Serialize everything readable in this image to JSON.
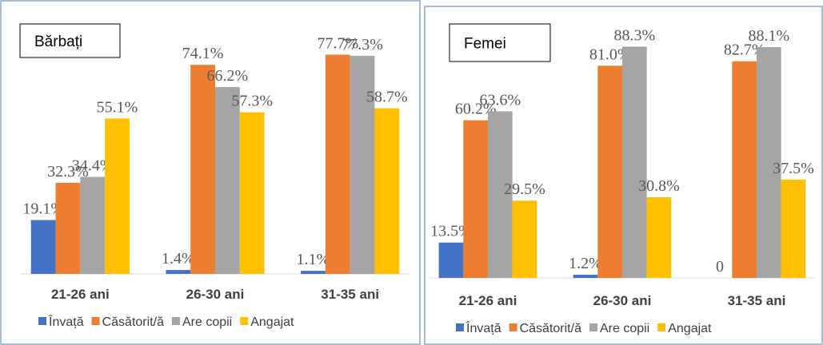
{
  "chart_data": [
    {
      "type": "bar",
      "title": "Bărbați",
      "categories": [
        "21-26 ani",
        "26-30 ani",
        "31-35 ani"
      ],
      "series": [
        {
          "name": "Învață",
          "color": "#4472c4",
          "values": [
            19.1,
            1.4,
            1.1
          ],
          "value_labels": [
            "19.1%",
            "1.4%",
            "1.1%"
          ]
        },
        {
          "name": "Căsătorit/ă",
          "color": "#ed7d31",
          "values": [
            32.3,
            74.1,
            77.7
          ],
          "value_labels": [
            "32.3%",
            "74.1%",
            "77.7%"
          ]
        },
        {
          "name": "Are copii",
          "color": "#a5a5a5",
          "values": [
            34.4,
            66.2,
            77.3
          ],
          "value_labels": [
            "34.4%",
            "66.2%",
            "77.3%"
          ]
        },
        {
          "name": "Angajat",
          "color": "#ffc000",
          "values": [
            55.1,
            57.3,
            58.7
          ],
          "value_labels": [
            "55.1%",
            "57.3%",
            "58.7%"
          ]
        }
      ],
      "ylim": [
        0,
        90
      ],
      "legend": "bottom"
    },
    {
      "type": "bar",
      "title": "Femei",
      "categories": [
        "21-26 ani",
        "26-30 ani",
        "31-35 ani"
      ],
      "series": [
        {
          "name": "Învață",
          "color": "#4472c4",
          "values": [
            13.5,
            1.2,
            0
          ],
          "value_labels": [
            "13.5%",
            "1.2%",
            "0"
          ]
        },
        {
          "name": "Căsătorit/ă",
          "color": "#ed7d31",
          "values": [
            60.2,
            81.0,
            82.7
          ],
          "value_labels": [
            "60.2%",
            "81.0%",
            "82.7%"
          ]
        },
        {
          "name": "Are copii",
          "color": "#a5a5a5",
          "values": [
            63.6,
            88.3,
            88.1
          ],
          "value_labels": [
            "63.6%",
            "88.3%",
            "88.1%"
          ]
        },
        {
          "name": "Angajat",
          "color": "#ffc000",
          "values": [
            29.5,
            30.8,
            37.5
          ],
          "value_labels": [
            "29.5%",
            "30.8%",
            "37.5%"
          ]
        }
      ],
      "ylim": [
        0,
        100
      ],
      "legend": "bottom"
    }
  ]
}
